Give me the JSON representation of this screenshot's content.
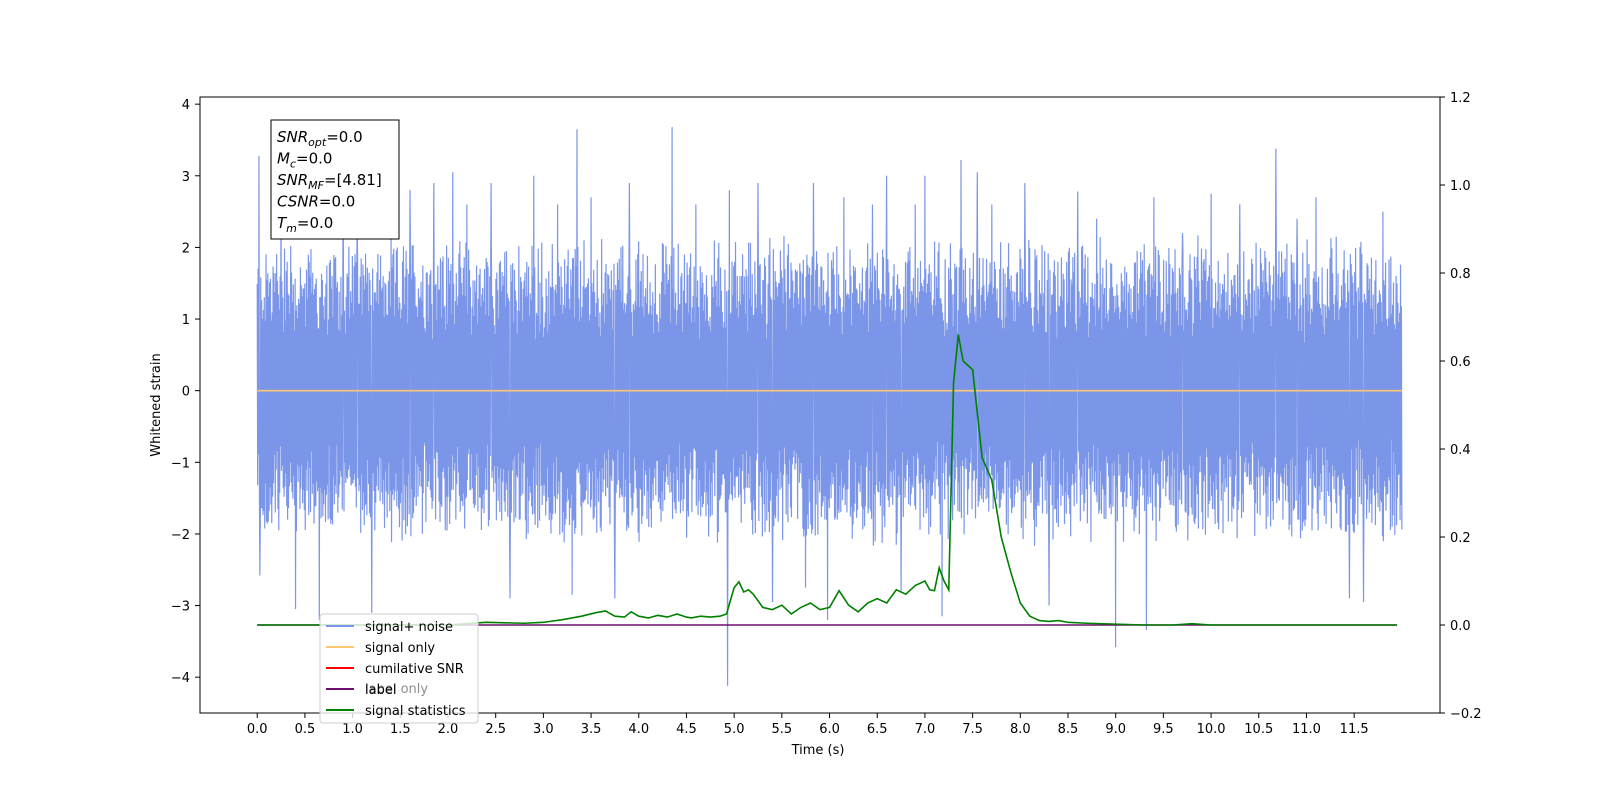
{
  "chart_data": {
    "type": "line",
    "title": "",
    "xlabel": "Time (s)",
    "ylabel": "Whitened strain",
    "xlim": [
      -0.6,
      12.4
    ],
    "ylim": [
      -4.5,
      4.1
    ],
    "y2lim": [
      -0.2,
      1.2
    ],
    "x_ticks": [
      "0.0",
      "0.5",
      "1.0",
      "1.5",
      "2.0",
      "2.5",
      "3.0",
      "3.5",
      "4.0",
      "4.5",
      "5.0",
      "5.5",
      "6.0",
      "6.5",
      "7.0",
      "7.5",
      "8.0",
      "8.5",
      "9.0",
      "9.5",
      "10.0",
      "10.5",
      "11.0",
      "11.5"
    ],
    "y_ticks": [
      "−4",
      "−3",
      "−2",
      "−1",
      "0",
      "1",
      "2",
      "3",
      "4"
    ],
    "y2_ticks": [
      "−0.2",
      "0.0",
      "0.2",
      "0.4",
      "0.6",
      "0.8",
      "1.0",
      "1.2"
    ],
    "grid": false,
    "legend_placement": "bottom-left",
    "legend": [
      {
        "label": "signal+ noise",
        "color": "#7b96e8"
      },
      {
        "label": "signal only",
        "color": "#ffc870"
      },
      {
        "label": "cumilative SNR",
        "color": "#ff0000"
      },
      {
        "label": "label",
        "color": "#6e0f6e"
      },
      {
        "label": "signal statistics",
        "color": "#008000"
      }
    ],
    "hidden_legend_text": "label only",
    "annotation_lines": [
      {
        "main": "SNR",
        "sub": "opt",
        "rest": "=0.0"
      },
      {
        "main": "M",
        "sub": "c",
        "rest": "=0.0"
      },
      {
        "main": "SNR",
        "sub": "MF",
        "rest": "=[4.81]"
      },
      {
        "main": "CSNR",
        "sub": "",
        "rest": "=0.0"
      },
      {
        "main": "T",
        "sub": "m",
        "rest": "=0.0"
      }
    ],
    "series": [
      {
        "name": "signal+ noise",
        "axis": "left",
        "color": "#7b96e8",
        "style": "noise",
        "x_range": [
          0.0,
          12.0
        ],
        "envelope": [
          -2.0,
          2.0
        ],
        "spikes": [
          {
            "x": 0.02,
            "y": 3.28
          },
          {
            "x": 0.03,
            "y": -2.58
          },
          {
            "x": 0.25,
            "y": 3.1
          },
          {
            "x": 0.4,
            "y": -3.05
          },
          {
            "x": 0.65,
            "y": -3.2
          },
          {
            "x": 0.9,
            "y": 3.0
          },
          {
            "x": 1.05,
            "y": 2.4
          },
          {
            "x": 1.2,
            "y": -3.1
          },
          {
            "x": 1.6,
            "y": 2.8
          },
          {
            "x": 1.85,
            "y": 2.9
          },
          {
            "x": 2.05,
            "y": 3.05
          },
          {
            "x": 2.2,
            "y": 2.6
          },
          {
            "x": 2.45,
            "y": 2.9
          },
          {
            "x": 2.65,
            "y": -2.9
          },
          {
            "x": 2.9,
            "y": 3.0
          },
          {
            "x": 3.15,
            "y": 2.6
          },
          {
            "x": 3.3,
            "y": -2.85
          },
          {
            "x": 3.35,
            "y": 3.65
          },
          {
            "x": 3.5,
            "y": 2.7
          },
          {
            "x": 3.75,
            "y": -2.9
          },
          {
            "x": 3.9,
            "y": 2.9
          },
          {
            "x": 4.35,
            "y": 3.68
          },
          {
            "x": 4.6,
            "y": 2.6
          },
          {
            "x": 4.93,
            "y": -4.12
          },
          {
            "x": 4.95,
            "y": 2.8
          },
          {
            "x": 5.25,
            "y": 2.9
          },
          {
            "x": 5.4,
            "y": -2.95
          },
          {
            "x": 5.75,
            "y": -2.75
          },
          {
            "x": 5.83,
            "y": 2.9
          },
          {
            "x": 5.98,
            "y": -3.2
          },
          {
            "x": 6.15,
            "y": 2.7
          },
          {
            "x": 6.45,
            "y": 2.6
          },
          {
            "x": 6.6,
            "y": 3.0
          },
          {
            "x": 6.75,
            "y": -2.8
          },
          {
            "x": 6.9,
            "y": 2.6
          },
          {
            "x": 7.0,
            "y": 3.0
          },
          {
            "x": 7.18,
            "y": -3.15
          },
          {
            "x": 7.38,
            "y": 3.22
          },
          {
            "x": 7.55,
            "y": 3.05
          },
          {
            "x": 7.7,
            "y": 2.6
          },
          {
            "x": 8.05,
            "y": 2.9
          },
          {
            "x": 8.3,
            "y": -3.0
          },
          {
            "x": 8.6,
            "y": 2.78
          },
          {
            "x": 8.8,
            "y": 2.4
          },
          {
            "x": 9.0,
            "y": -3.58
          },
          {
            "x": 9.32,
            "y": -3.34
          },
          {
            "x": 9.4,
            "y": 2.7
          },
          {
            "x": 9.7,
            "y": 2.2
          },
          {
            "x": 10.0,
            "y": 2.75
          },
          {
            "x": 10.3,
            "y": 2.6
          },
          {
            "x": 10.68,
            "y": 3.38
          },
          {
            "x": 10.9,
            "y": 2.4
          },
          {
            "x": 11.1,
            "y": 2.7
          },
          {
            "x": 11.45,
            "y": -2.9
          },
          {
            "x": 11.6,
            "y": -2.95
          },
          {
            "x": 11.8,
            "y": 2.5
          },
          {
            "x": 11.9,
            "y": -1.9
          }
        ]
      },
      {
        "name": "signal only",
        "axis": "left",
        "color": "#ffc870",
        "style": "line",
        "x": [
          0.0,
          12.0
        ],
        "y": [
          0.0,
          0.0
        ]
      },
      {
        "name": "label",
        "axis": "right",
        "color": "#6e0f6e",
        "style": "line",
        "x": [
          0.0,
          11.95
        ],
        "y": [
          0.0,
          0.0
        ]
      },
      {
        "name": "signal statistics",
        "axis": "right",
        "color": "#008000",
        "style": "line",
        "x": [
          0.0,
          0.5,
          1.0,
          1.5,
          2.0,
          2.2,
          2.4,
          2.6,
          2.8,
          3.0,
          3.2,
          3.4,
          3.55,
          3.65,
          3.75,
          3.85,
          3.92,
          4.0,
          4.1,
          4.2,
          4.3,
          4.4,
          4.5,
          4.55,
          4.65,
          4.75,
          4.85,
          4.92,
          5.0,
          5.05,
          5.1,
          5.15,
          5.2,
          5.3,
          5.4,
          5.5,
          5.6,
          5.7,
          5.8,
          5.9,
          6.0,
          6.1,
          6.2,
          6.3,
          6.4,
          6.5,
          6.6,
          6.7,
          6.8,
          6.9,
          7.0,
          7.05,
          7.1,
          7.15,
          7.2,
          7.25,
          7.3,
          7.35,
          7.4,
          7.5,
          7.6,
          7.7,
          7.8,
          7.9,
          8.0,
          8.1,
          8.2,
          8.3,
          8.4,
          8.5,
          8.7,
          9.0,
          9.3,
          9.6,
          9.8,
          10.0,
          10.5,
          11.0,
          11.95
        ],
        "y": [
          0.0,
          0.0,
          0.0,
          0.0,
          0.0,
          0.003,
          0.006,
          0.005,
          0.004,
          0.006,
          0.012,
          0.02,
          0.028,
          0.032,
          0.02,
          0.018,
          0.03,
          0.02,
          0.016,
          0.022,
          0.018,
          0.025,
          0.018,
          0.016,
          0.02,
          0.018,
          0.02,
          0.025,
          0.085,
          0.098,
          0.075,
          0.08,
          0.07,
          0.04,
          0.035,
          0.045,
          0.025,
          0.04,
          0.05,
          0.035,
          0.04,
          0.078,
          0.045,
          0.03,
          0.05,
          0.06,
          0.05,
          0.08,
          0.07,
          0.09,
          0.1,
          0.08,
          0.078,
          0.13,
          0.1,
          0.08,
          0.55,
          0.66,
          0.6,
          0.58,
          0.38,
          0.33,
          0.2,
          0.12,
          0.05,
          0.02,
          0.01,
          0.008,
          0.01,
          0.006,
          0.004,
          0.002,
          0.0,
          0.0,
          0.003,
          0.0,
          0.0,
          0.0,
          0.0
        ]
      }
    ]
  }
}
